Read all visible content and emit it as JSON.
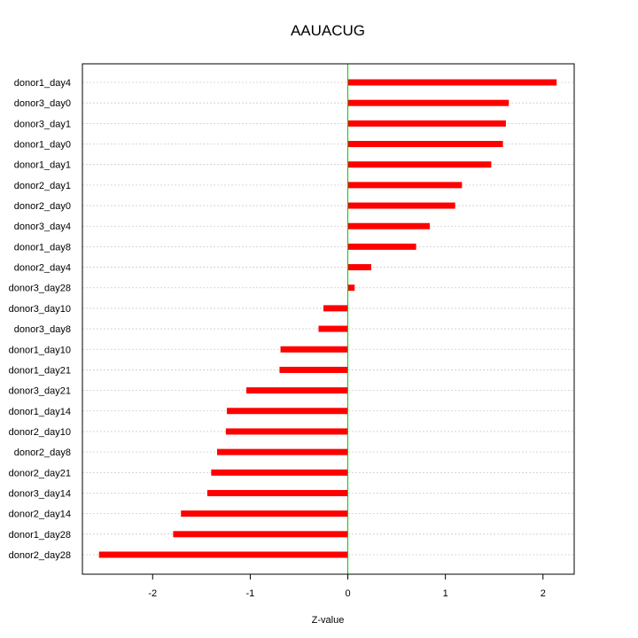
{
  "chart_data": {
    "type": "bar",
    "orientation": "horizontal",
    "title": "AAUACUG",
    "xlabel": "Z-value",
    "ylabel": "",
    "xlim": [
      -2.72,
      2.32
    ],
    "xticks": [
      -2,
      -1,
      0,
      1,
      2
    ],
    "xtick_labels": [
      "-2",
      "-1",
      "0",
      "1",
      "2"
    ],
    "grid": "horizontal dotted",
    "zero_line": true,
    "colors": {
      "bar": "#ff0000",
      "zero_line": "#00cc00",
      "grid": "#cccccc",
      "axis": "#000000"
    },
    "categories": [
      "donor1_day4",
      "donor3_day0",
      "donor3_day1",
      "donor1_day0",
      "donor1_day1",
      "donor2_day1",
      "donor2_day0",
      "donor3_day4",
      "donor1_day8",
      "donor2_day4",
      "donor3_day28",
      "donor3_day10",
      "donor3_day8",
      "donor1_day10",
      "donor1_day21",
      "donor3_day21",
      "donor1_day14",
      "donor2_day10",
      "donor2_day8",
      "donor2_day21",
      "donor3_day14",
      "donor2_day14",
      "donor1_day28",
      "donor2_day28"
    ],
    "values": [
      2.14,
      1.65,
      1.62,
      1.59,
      1.47,
      1.17,
      1.1,
      0.84,
      0.7,
      0.24,
      0.07,
      -0.25,
      -0.3,
      -0.69,
      -0.7,
      -1.04,
      -1.24,
      -1.25,
      -1.34,
      -1.4,
      -1.44,
      -1.71,
      -1.79,
      -2.55
    ]
  }
}
